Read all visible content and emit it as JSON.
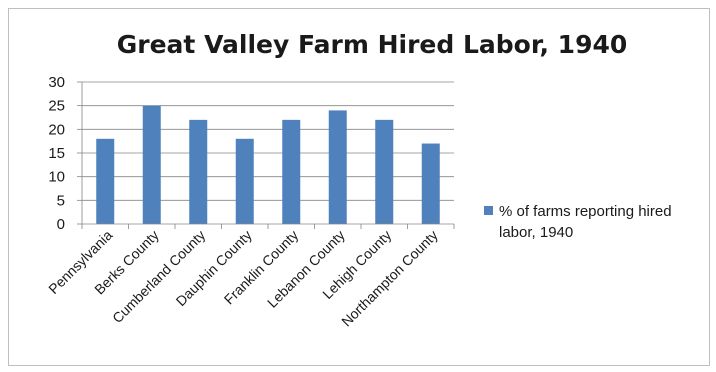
{
  "chart_data": {
    "type": "bar",
    "title": "Great Valley Farm Hired Labor, 1940",
    "xlabel": "",
    "ylabel": "",
    "categories": [
      "Pennsylvania",
      "Berks County",
      "Cumberland County",
      "Dauphin County",
      "Franklin County",
      "Lebanon County",
      "Lehigh County",
      "Northampton County"
    ],
    "series": [
      {
        "name": "% of farms reporting hired labor, 1940",
        "values": [
          18,
          25,
          22,
          18,
          22,
          24,
          22,
          17
        ],
        "color": "#4f81bd"
      }
    ],
    "ylim": [
      0,
      30
    ],
    "yticks": [
      0,
      5,
      10,
      15,
      20,
      25,
      30
    ],
    "grid": true,
    "legend_position": "right",
    "legend_lines": [
      "% of farms reporting hired",
      "labor, 1940"
    ]
  }
}
